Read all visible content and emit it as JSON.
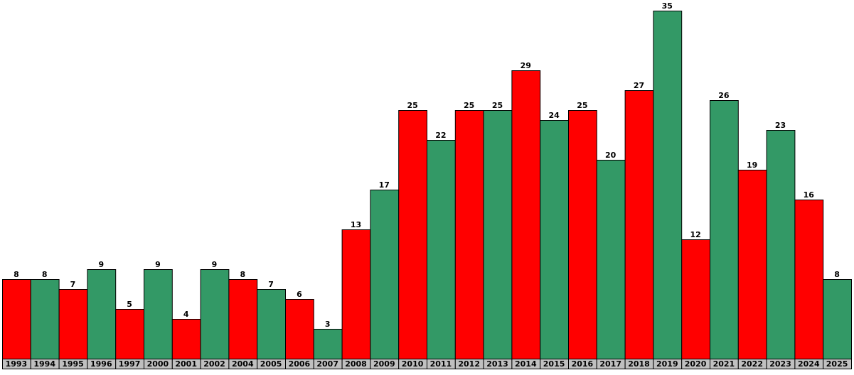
{
  "chart_data": {
    "type": "bar",
    "categories": [
      "1993",
      "1994",
      "1995",
      "1996",
      "1997",
      "2000",
      "2001",
      "2002",
      "2004",
      "2005",
      "2006",
      "2007",
      "2008",
      "2009",
      "2010",
      "2011",
      "2012",
      "2013",
      "2014",
      "2015",
      "2016",
      "2017",
      "2018",
      "2019",
      "2020",
      "2021",
      "2022",
      "2023",
      "2024",
      "2025"
    ],
    "values": [
      8,
      8,
      7,
      9,
      5,
      9,
      4,
      9,
      8,
      7,
      6,
      3,
      13,
      17,
      25,
      22,
      25,
      25,
      29,
      24,
      25,
      20,
      27,
      35,
      12,
      26,
      19,
      23,
      16,
      8
    ],
    "colors": [
      "#ff0000",
      "#339966",
      "#ff0000",
      "#339966",
      "#ff0000",
      "#339966",
      "#ff0000",
      "#339966",
      "#ff0000",
      "#339966",
      "#ff0000",
      "#339966",
      "#ff0000",
      "#339966",
      "#ff0000",
      "#339966",
      "#ff0000",
      "#339966",
      "#ff0000",
      "#339966",
      "#ff0000",
      "#339966",
      "#ff0000",
      "#339966",
      "#ff0000",
      "#339966",
      "#ff0000",
      "#339966",
      "#ff0000",
      "#339966"
    ],
    "ylim": [
      0,
      35
    ]
  }
}
